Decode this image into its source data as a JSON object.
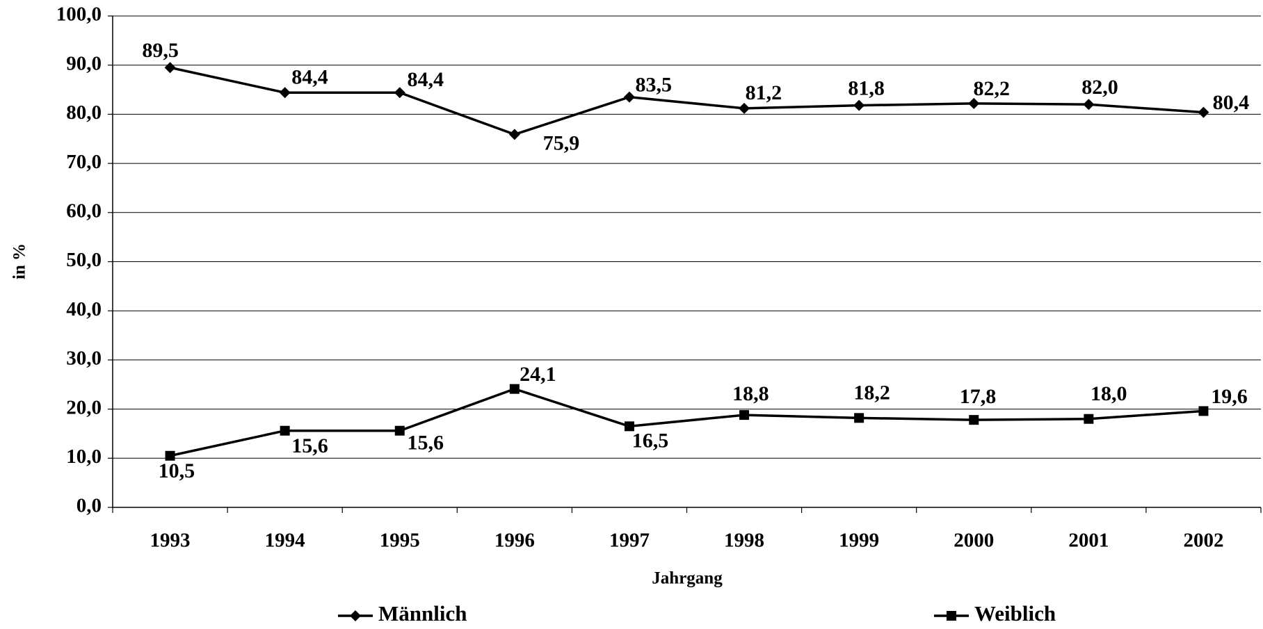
{
  "chart_data": {
    "type": "line",
    "y_label": "in %",
    "x_label": "Jahrgang",
    "categories": [
      "1993",
      "1994",
      "1995",
      "1996",
      "1997",
      "1998",
      "1999",
      "2000",
      "2001",
      "2002"
    ],
    "series": [
      {
        "name": "Männlich",
        "color": "#000000",
        "marker": "diamond",
        "values": [
          89.5,
          84.4,
          84.4,
          75.9,
          83.5,
          81.2,
          81.8,
          82.2,
          82.0,
          80.4
        ],
        "value_labels": [
          "89,5",
          "84,4",
          "84,4",
          "75,9",
          "83,5",
          "81,2",
          "81,8",
          "82,2",
          "82,0",
          "80,4"
        ]
      },
      {
        "name": "Weiblich",
        "color": "#000000",
        "marker": "square",
        "values": [
          10.5,
          15.6,
          15.6,
          24.1,
          16.5,
          18.8,
          18.2,
          17.8,
          18.0,
          19.6
        ],
        "value_labels": [
          "10,5",
          "15,6",
          "15,6",
          "24,1",
          "16,5",
          "18,8",
          "18,2",
          "17,8",
          "18,0",
          "19,6"
        ]
      }
    ],
    "ylim": [
      0,
      100
    ],
    "yticks": [
      {
        "value": 0,
        "label": "0,0"
      },
      {
        "value": 10,
        "label": "10,0"
      },
      {
        "value": 20,
        "label": "20,0"
      },
      {
        "value": 30,
        "label": "30,0"
      },
      {
        "value": 40,
        "label": "40,0"
      },
      {
        "value": 50,
        "label": "50,0"
      },
      {
        "value": 60,
        "label": "60,0"
      },
      {
        "value": 70,
        "label": "70,0"
      },
      {
        "value": 80,
        "label": "80,0"
      },
      {
        "value": 90,
        "label": "90,0"
      },
      {
        "value": 100,
        "label": "100,0"
      }
    ],
    "grid": true,
    "legend": "bottom"
  }
}
